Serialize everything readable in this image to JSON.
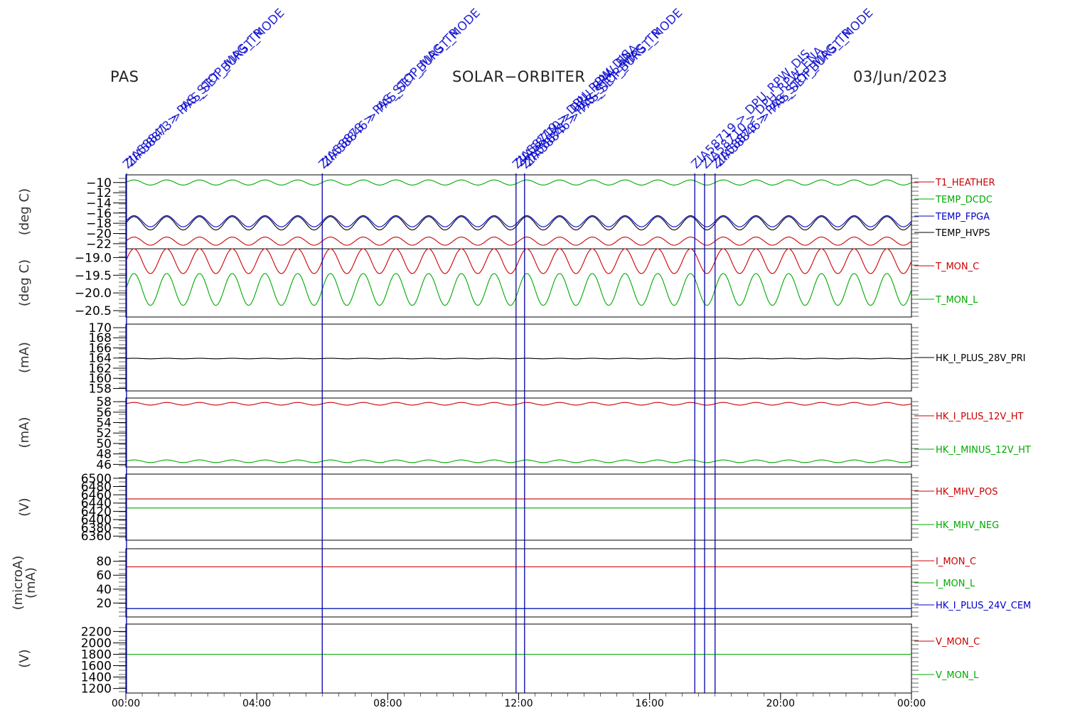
{
  "header": {
    "instrument": "PAS",
    "mission": "SOLAR−ORBITER",
    "date": "03/Jun/2023"
  },
  "colors": {
    "red": "#cc0000",
    "green": "#00aa00",
    "blue": "#0000cc",
    "black": "#000000",
    "event_line": "#0000aa"
  },
  "chart_data": {
    "type": "line",
    "x_axis": {
      "unit": "hours",
      "range": [
        0,
        24
      ],
      "ticks": [
        0,
        4,
        8,
        12,
        16,
        20,
        24
      ],
      "tick_labels": [
        "00:00",
        "04:00",
        "08:00",
        "12:00",
        "16:00",
        "20:00",
        "00:00"
      ]
    },
    "events": [
      {
        "t": 0.02,
        "labels": [
          "ZIA58841 > PAS_STOP_MAG_TR",
          "ZIA58873 > PAS_SET_BURST_MODE"
        ]
      },
      {
        "t": 6.0,
        "labels": [
          "ZIA58873 > PAS_STOP_MAG_TR",
          "ZIA58846 > PAS_SET_BURST_MODE"
        ]
      },
      {
        "t": 11.92,
        "labels": [
          "ZIA58719 > DPU_RPW_DIS",
          "ZIA58710 > DPU_RPW_ENA"
        ]
      },
      {
        "t": 12.18,
        "labels": [
          "ZIA58873 > PAS_STOP_MAG_TR",
          "ZIA58846 > PAS_SET_BURST_MODE"
        ]
      },
      {
        "t": 17.38,
        "labels": [
          "ZIA58719 > DPU_RPW_DIS"
        ]
      },
      {
        "t": 17.68,
        "labels": [
          "ZIA58710 > DPU_RPW_ENA"
        ]
      },
      {
        "t": 18.0,
        "labels": [
          "ZIA58873 > PAS_STOP_MAG_TR",
          "ZIA58846 > PAS_SET_BURST_MODE"
        ]
      }
    ],
    "panels": [
      {
        "ylabel": "(deg C)",
        "ylim": [
          -23,
          -8.5
        ],
        "yticks": [
          -10,
          -12,
          -14,
          -16,
          -18,
          -20,
          -22
        ],
        "ytick_labels": [
          "−10",
          "−12",
          "−14",
          "−16",
          "−18",
          "−20",
          "−22"
        ],
        "series": [
          {
            "name": "T1_HEATHER",
            "color": "red",
            "mean": -21.5,
            "amp": 0.8,
            "period_h": 1.0
          },
          {
            "name": "TEMP_DCDC",
            "color": "green",
            "mean": -10.0,
            "amp": 0.5,
            "period_h": 1.0
          },
          {
            "name": "TEMP_FPGA",
            "color": "blue",
            "mean": -17.6,
            "amp": 1.1,
            "period_h": 1.0
          },
          {
            "name": "TEMP_HVPS",
            "color": "black",
            "mean": -18.0,
            "amp": 1.3,
            "period_h": 1.0
          }
        ]
      },
      {
        "ylabel": "(deg C)",
        "ylim": [
          -20.68,
          -18.75
        ],
        "yticks": [
          -19.0,
          -19.5,
          -20.0,
          -20.5
        ],
        "ytick_labels": [
          "−19.0",
          "−19.5",
          "−20.0",
          "−20.5"
        ],
        "series": [
          {
            "name": "T_MON_C",
            "color": "red",
            "mean": -19.1,
            "amp": 0.35,
            "period_h": 1.0
          },
          {
            "name": "T_MON_L",
            "color": "green",
            "mean": -19.9,
            "amp": 0.45,
            "period_h": 1.0
          }
        ]
      },
      {
        "ylabel": "(mA)",
        "ylim": [
          157.5,
          170.7
        ],
        "yticks": [
          158,
          160,
          162,
          164,
          166,
          168,
          170
        ],
        "ytick_labels": [
          "158",
          "160",
          "162",
          "164",
          "166",
          "168",
          "170"
        ],
        "series": [
          {
            "name": "HK_I_PLUS_28V_PRI",
            "color": "black",
            "mean": 163.9,
            "amp": 0.05,
            "period_h": 1.0
          }
        ]
      },
      {
        "ylabel": "(mA)",
        "ylim": [
          45.5,
          58.7
        ],
        "yticks": [
          46,
          48,
          50,
          52,
          54,
          56,
          58
        ],
        "ytick_labels": [
          "46",
          "48",
          "50",
          "52",
          "54",
          "56",
          "58"
        ],
        "series": [
          {
            "name": "HK_I_PLUS_12V_HT",
            "color": "red",
            "mean": 57.6,
            "amp": 0.25,
            "period_h": 1.0
          },
          {
            "name": "HK_I_MINUS_12V_HT",
            "color": "green",
            "mean": 46.6,
            "amp": 0.25,
            "period_h": 1.0
          }
        ]
      },
      {
        "ylabel": "(V)",
        "ylim": [
          6350,
          6510
        ],
        "yticks": [
          6360,
          6380,
          6400,
          6420,
          6440,
          6460,
          6480,
          6500
        ],
        "ytick_labels": [
          "6360",
          "6380",
          "6400",
          "6420",
          "6440",
          "6460",
          "6480",
          "6500"
        ],
        "series": [
          {
            "name": "HK_MHV_POS",
            "color": "red",
            "mean": 6450,
            "amp": 0,
            "period_h": 1.0
          },
          {
            "name": "HK_MHV_NEG",
            "color": "green",
            "mean": 6428,
            "amp": 0,
            "period_h": 1.0
          }
        ]
      },
      {
        "ylabel": "(microA)\n(mA)",
        "ylim": [
          0,
          98
        ],
        "yticks": [
          20,
          40,
          60,
          80
        ],
        "ytick_labels": [
          "20",
          "40",
          "60",
          "80"
        ],
        "series": [
          {
            "name": "I_MON_C",
            "color": "red",
            "mean": 72,
            "amp": 0,
            "period_h": 1.0
          },
          {
            "name": "I_MON_L",
            "color": "green",
            "mean": 12,
            "amp": 0,
            "period_h": 1.0
          },
          {
            "name": "HK_I_PLUS_24V_CEM",
            "color": "blue",
            "mean": 12,
            "amp": 0,
            "period_h": 1.0
          }
        ]
      },
      {
        "ylabel": "(V)",
        "ylim": [
          1120,
          2330
        ],
        "yticks": [
          1200,
          1400,
          1600,
          1800,
          2000,
          2200
        ],
        "ytick_labels": [
          "1200",
          "1400",
          "1600",
          "1800",
          "2000",
          "2200"
        ],
        "series": [
          {
            "name": "V_MON_C",
            "color": "red",
            "mean": 1800,
            "amp": 0,
            "period_h": 1.0
          },
          {
            "name": "V_MON_L",
            "color": "green",
            "mean": 1800,
            "amp": 0,
            "period_h": 1.0
          }
        ]
      }
    ]
  }
}
